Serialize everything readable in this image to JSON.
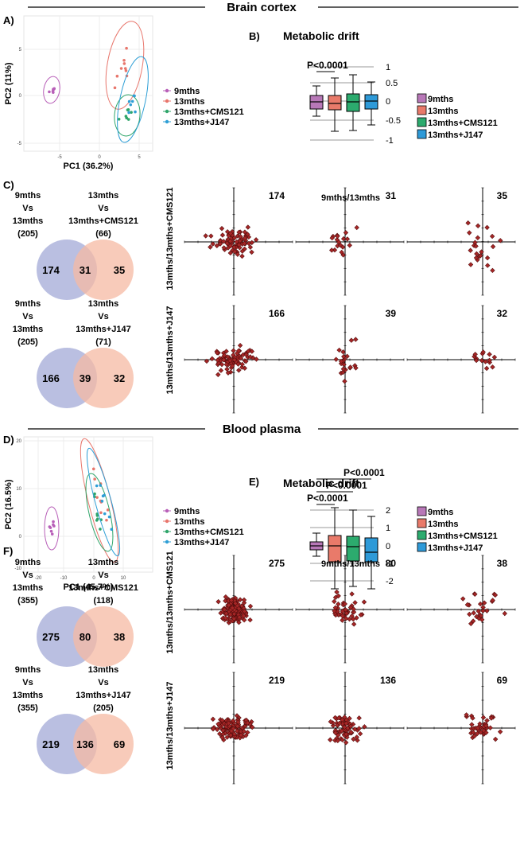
{
  "sections": {
    "brain": "Brain cortex",
    "plasma": "Blood plasma"
  },
  "panel_letters": {
    "A": "A)",
    "B": "B)",
    "C": "C)",
    "D": "D)",
    "E": "E)",
    "F": "F)"
  },
  "legend_items": [
    "9mths",
    "13mths",
    "13mths+CMS121",
    "13mths+J147"
  ],
  "colors": {
    "9mths": "#b85fb8",
    "13mths": "#e8766c",
    "13mths+CMS121": "#2fa56a",
    "13mths+J147": "#2f9fd6",
    "box_9mths": "#b878b8",
    "box_13mths": "#e97a6a",
    "box_CMS121": "#2cab6e",
    "box_J147": "#2e9ad8",
    "venn_left": "#b3b8de",
    "venn_right": "#f6b9a3",
    "scatter_point": "#a52626"
  },
  "panelA": {
    "ylabel": "PC2 (11%)",
    "xlabel": "PC1 (36.2%)",
    "xticks": [
      "-5",
      "0",
      "5"
    ],
    "yticks": [
      "5",
      "0",
      "-5"
    ]
  },
  "panelB": {
    "title": "Metabolic drift",
    "pvalues": [
      "P<0.0001"
    ],
    "yticks": [
      "1",
      "0.5",
      "0",
      "-0.5",
      "-1"
    ]
  },
  "panelC": {
    "venn_top": {
      "left_title": [
        "9mths",
        "Vs",
        "13mths",
        "(205)"
      ],
      "right_title": [
        "13mths",
        "Vs",
        "13mths+CMS121",
        "(66)"
      ],
      "left": "174",
      "center": "31",
      "right": "35"
    },
    "venn_bottom": {
      "left_title": [
        "9mths",
        "Vs",
        "13mths",
        "(205)"
      ],
      "right_title": [
        "13mths",
        "Vs",
        "13mths+J147",
        "(71)"
      ],
      "left": "166",
      "center": "39",
      "right": "32"
    },
    "scatter_title": "9mths/13mths",
    "row_labels": [
      "13mths/13mths+CMS121",
      "13mths/13mths+J147"
    ],
    "counts_row1": [
      "174",
      "31",
      "35"
    ],
    "counts_row2": [
      "166",
      "39",
      "32"
    ]
  },
  "panelD": {
    "ylabel": "PC2 (16.5%)",
    "xlabel": "PC1 (45.7%)",
    "xticks": [
      "-20",
      "-10",
      "0",
      "10"
    ],
    "yticks": [
      "20",
      "10",
      "0",
      "-10"
    ]
  },
  "panelE": {
    "title": "Metabolic drift",
    "pvalues": [
      "P<0.0001",
      "P<0.0001",
      "P<0.0001"
    ],
    "yticks": [
      "2",
      "1",
      "0",
      "-1",
      "-2"
    ]
  },
  "panelF": {
    "venn_top": {
      "left_title": [
        "9mths",
        "Vs",
        "13mths",
        "(355)"
      ],
      "right_title": [
        "13mths",
        "Vs",
        "13mths+CMS121",
        "(118)"
      ],
      "left": "275",
      "center": "80",
      "right": "38"
    },
    "venn_bottom": {
      "left_title": [
        "9mths",
        "Vs",
        "13mths",
        "(355)"
      ],
      "right_title": [
        "13mths",
        "Vs",
        "13mths+J147",
        "(205)"
      ],
      "left": "219",
      "center": "136",
      "right": "69"
    },
    "scatter_title": "9mths/13mths",
    "row_labels": [
      "13mths/13mths+CMS121",
      "13mths/13mths+J147"
    ],
    "counts_row1": [
      "275",
      "80",
      "38"
    ],
    "counts_row2": [
      "219",
      "136",
      "69"
    ]
  }
}
